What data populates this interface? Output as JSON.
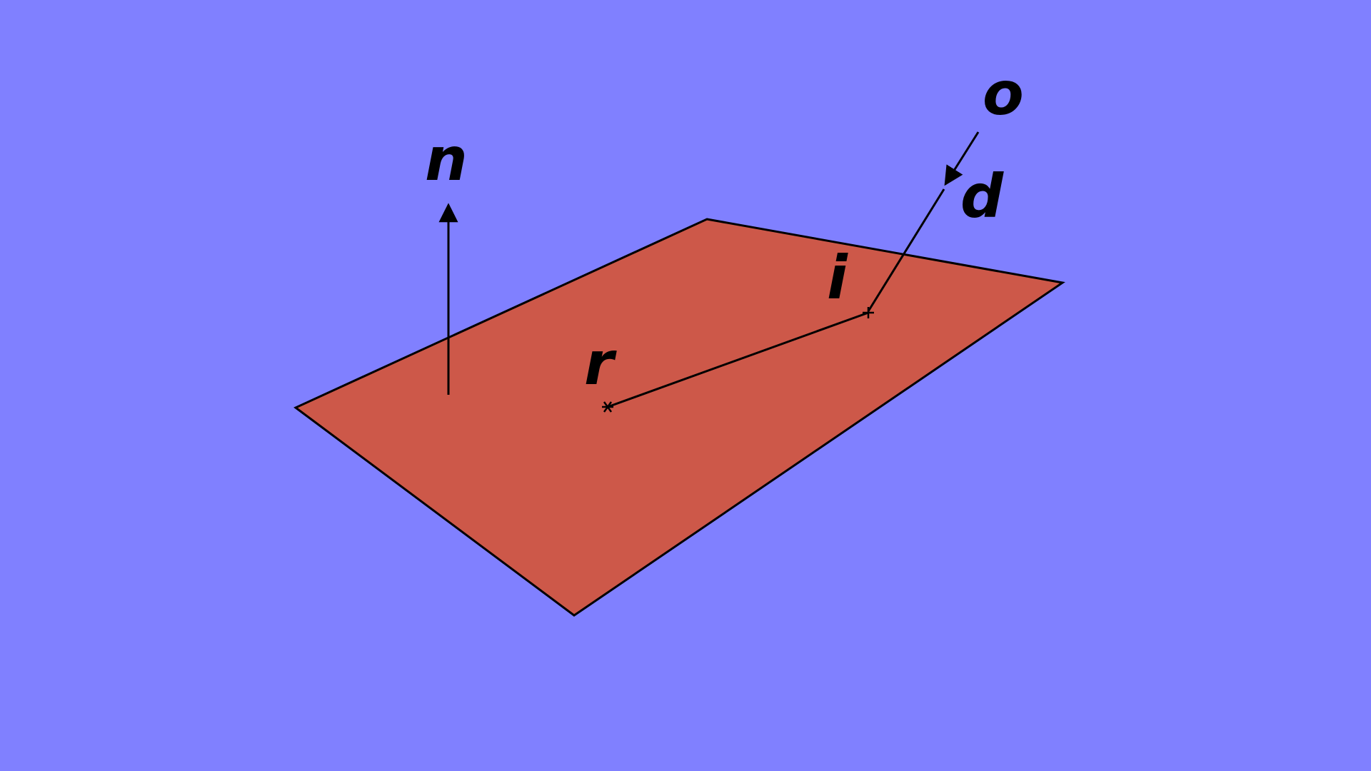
{
  "diagram": {
    "labels": {
      "normal": "n",
      "origin": "o",
      "direction": "d",
      "intersection": "i",
      "reference_point": "r"
    },
    "colors": {
      "background": "#8080ff",
      "plane_fill": "#cd5849",
      "stroke": "#000000"
    }
  }
}
